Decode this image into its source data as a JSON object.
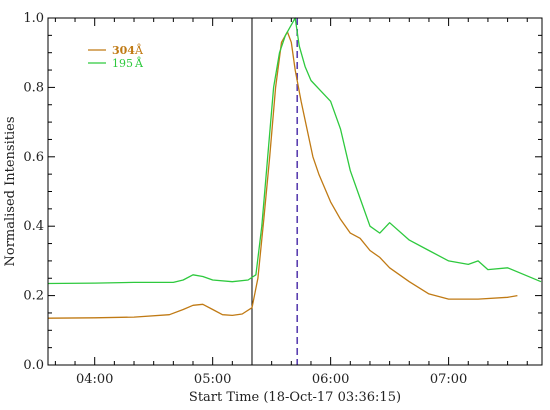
{
  "chart_data": {
    "type": "line",
    "title": "",
    "xlabel": "Start Time (18-Oct-17 03:36:15)",
    "ylabel": "Normalised Intensities",
    "xlim": [
      "03:36:15",
      "07:47:30"
    ],
    "ylim": [
      0,
      1
    ],
    "x_ticks": [
      "04:00",
      "05:00",
      "06:00",
      "07:00"
    ],
    "y_ticks": [
      "0.0",
      "0.2",
      "0.4",
      "0.6",
      "0.8",
      "1.0"
    ],
    "legend_position": "top-left",
    "grid": false,
    "vertical_markers": [
      {
        "time": "05:20",
        "style": "solid",
        "color": "#000000"
      },
      {
        "time": "05:43",
        "style": "dashed",
        "color": "#5a3fb0"
      }
    ],
    "series": [
      {
        "name": "304",
        "unit_label": "Å",
        "color": "#c07a14",
        "x": [
          "03:36",
          "04:00",
          "04:20",
          "04:38",
          "04:45",
          "04:50",
          "04:55",
          "05:00",
          "05:05",
          "05:10",
          "05:15",
          "05:20",
          "05:23",
          "05:26",
          "05:29",
          "05:32",
          "05:35",
          "05:38",
          "05:40",
          "05:42",
          "05:45",
          "05:48",
          "05:51",
          "05:54",
          "06:00",
          "06:05",
          "06:10",
          "06:15",
          "06:20",
          "06:25",
          "06:30",
          "06:40",
          "06:50",
          "07:00",
          "07:15",
          "07:30",
          "07:35"
        ],
        "values": [
          0.135,
          0.136,
          0.138,
          0.145,
          0.16,
          0.172,
          0.175,
          0.16,
          0.145,
          0.143,
          0.147,
          0.165,
          0.25,
          0.42,
          0.6,
          0.8,
          0.93,
          0.96,
          0.93,
          0.85,
          0.76,
          0.68,
          0.6,
          0.55,
          0.47,
          0.42,
          0.38,
          0.365,
          0.33,
          0.31,
          0.28,
          0.24,
          0.205,
          0.19,
          0.19,
          0.195,
          0.2
        ]
      },
      {
        "name": "195",
        "unit_label": "Å",
        "color": "#2ec93e",
        "x": [
          "03:36",
          "04:00",
          "04:20",
          "04:40",
          "04:45",
          "04:50",
          "04:55",
          "05:00",
          "05:10",
          "05:18",
          "05:22",
          "05:25",
          "05:28",
          "05:31",
          "05:34",
          "05:37",
          "05:40",
          "05:42",
          "05:44",
          "05:47",
          "05:50",
          "05:55",
          "06:00",
          "06:05",
          "06:10",
          "06:15",
          "06:20",
          "06:25",
          "06:30",
          "06:40",
          "06:50",
          "07:00",
          "07:10",
          "07:15",
          "07:20",
          "07:30",
          "07:47"
        ],
        "values": [
          0.235,
          0.236,
          0.238,
          0.238,
          0.245,
          0.26,
          0.255,
          0.245,
          0.24,
          0.245,
          0.26,
          0.4,
          0.6,
          0.8,
          0.9,
          0.95,
          0.98,
          1.0,
          0.92,
          0.86,
          0.82,
          0.79,
          0.76,
          0.68,
          0.56,
          0.48,
          0.4,
          0.38,
          0.41,
          0.36,
          0.33,
          0.3,
          0.29,
          0.3,
          0.275,
          0.28,
          0.24
        ]
      }
    ]
  }
}
